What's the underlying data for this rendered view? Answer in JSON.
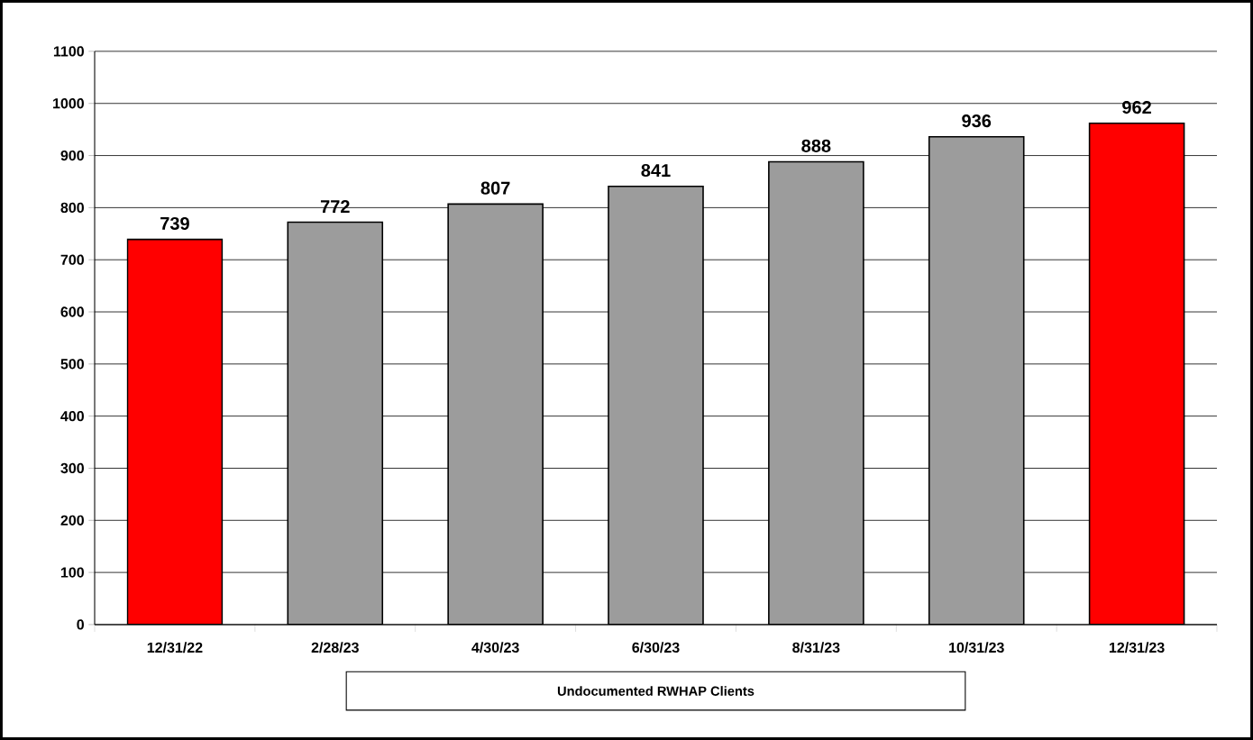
{
  "chart_data": {
    "type": "bar",
    "xlabel": "Undocumented RWHAP Clients",
    "categories": [
      "12/31/22",
      "2/28/23",
      "4/30/23",
      "6/30/23",
      "8/31/23",
      "10/31/23",
      "12/31/23"
    ],
    "values": [
      739,
      772,
      807,
      841,
      888,
      936,
      962
    ],
    "colors": [
      "#ff0000",
      "#9c9c9c",
      "#9c9c9c",
      "#9c9c9c",
      "#9c9c9c",
      "#9c9c9c",
      "#ff0000"
    ],
    "ylim": [
      0,
      1100
    ],
    "yticks": [
      0,
      100,
      200,
      300,
      400,
      500,
      600,
      700,
      800,
      900,
      1000,
      1100
    ],
    "grid": "y",
    "data_labels": true
  }
}
